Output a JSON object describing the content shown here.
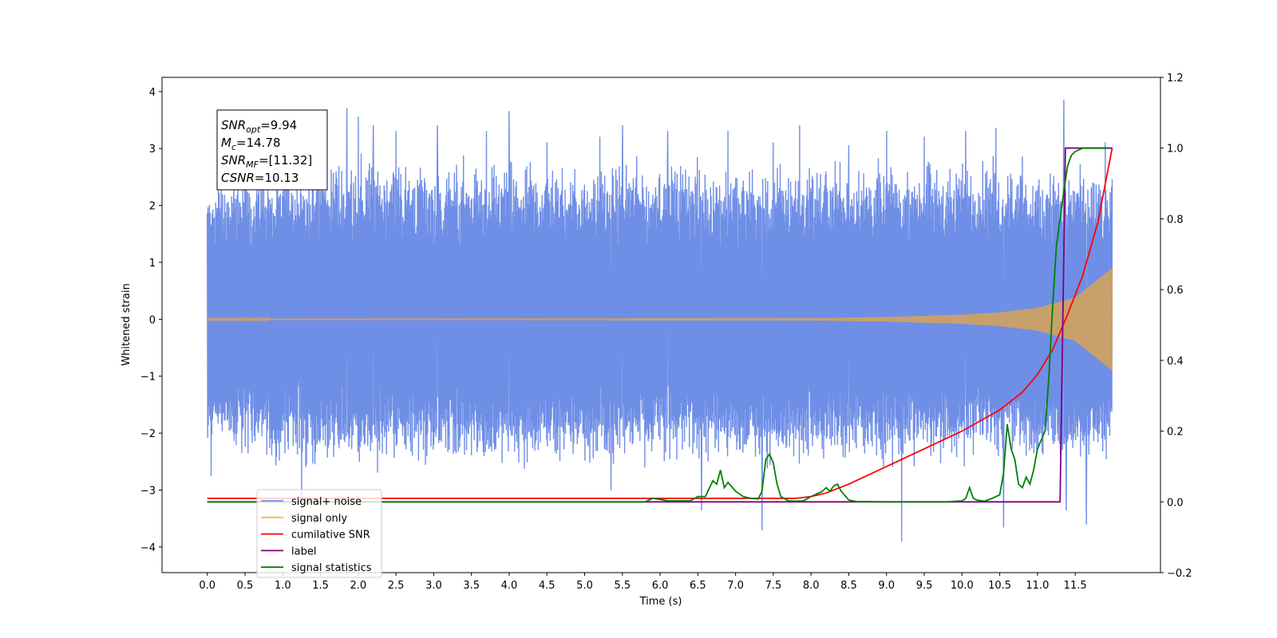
{
  "chart_data": {
    "type": "line",
    "xlabel": "Time (s)",
    "ylabel": "Whitened strain",
    "xlim": [
      -0.6,
      12.63
    ],
    "ylim": [
      -4.45,
      4.25
    ],
    "y2lim": [
      -0.2,
      1.2
    ],
    "x_ticks": [
      0.0,
      0.5,
      1.0,
      1.5,
      2.0,
      2.5,
      3.0,
      3.5,
      4.0,
      4.5,
      5.0,
      5.5,
      6.0,
      6.5,
      7.0,
      7.5,
      8.0,
      8.5,
      9.0,
      9.5,
      10.0,
      10.5,
      11.0,
      11.5
    ],
    "x_tick_labels": [
      "0.0",
      "0.5",
      "1.0",
      "1.5",
      "2.0",
      "2.5",
      "3.0",
      "3.5",
      "4.0",
      "4.5",
      "5.0",
      "5.5",
      "6.0",
      "6.5",
      "7.0",
      "7.5",
      "8.0",
      "8.5",
      "9.0",
      "9.5",
      "10.0",
      "10.5",
      "11.0",
      "11.5"
    ],
    "y_ticks": [
      -4,
      -3,
      -2,
      -1,
      0,
      1,
      2,
      3,
      4
    ],
    "y_tick_labels": [
      "−4",
      "−3",
      "−2",
      "−1",
      "0",
      "1",
      "2",
      "3",
      "4"
    ],
    "y2_ticks": [
      -0.2,
      0.0,
      0.2,
      0.4,
      0.6,
      0.8,
      1.0,
      1.2
    ],
    "y2_tick_labels": [
      "−0.2",
      "0.0",
      "0.2",
      "0.4",
      "0.6",
      "0.8",
      "1.0",
      "1.2"
    ],
    "annotation": {
      "lines": [
        {
          "base": "SNR",
          "sub": "opt",
          "value": "=9.94"
        },
        {
          "base": "M",
          "sub": "c",
          "value": "=14.78"
        },
        {
          "base": "SNR",
          "sub": "MF",
          "value": "=[11.32]"
        },
        {
          "base": "CSNR",
          "sub": "",
          "value": "=10.13"
        }
      ]
    },
    "legend": {
      "position": "lower-left",
      "entries": [
        {
          "label": "signal+ noise",
          "color": "#6f8ee6"
        },
        {
          "label": "signal only",
          "color": "#ffb347"
        },
        {
          "label": "cumilative SNR",
          "color": "#ff0000"
        },
        {
          "label": "label",
          "color": "#800080"
        },
        {
          "label": "signal statistics",
          "color": "#008000"
        }
      ]
    },
    "series": [
      {
        "name": "signal+ noise",
        "axis": "left",
        "color": "#6f8ee6",
        "t_start": 0.0,
        "t_end": 11.99,
        "envelope": {
          "t": [
            0.0,
            1.0,
            2.0,
            3.0,
            4.0,
            5.0,
            6.0,
            7.0,
            8.0,
            9.0,
            10.0,
            10.5,
            11.0,
            11.5,
            11.99
          ],
          "upper": [
            2.2,
            2.5,
            2.6,
            2.5,
            2.5,
            2.5,
            2.5,
            2.5,
            2.5,
            2.5,
            2.5,
            2.5,
            2.5,
            2.5,
            2.3
          ],
          "lower": [
            -2.0,
            -2.3,
            -2.4,
            -2.3,
            -2.3,
            -2.3,
            -2.3,
            -2.3,
            -2.3,
            -2.3,
            -2.3,
            -2.3,
            -2.3,
            -2.3,
            -2.1
          ]
        },
        "spikes": [
          {
            "t": 0.05,
            "y": -2.75
          },
          {
            "t": 0.35,
            "y": 3.3
          },
          {
            "t": 1.25,
            "y": -3.7
          },
          {
            "t": 1.45,
            "y": 3.5
          },
          {
            "t": 1.85,
            "y": 3.7
          },
          {
            "t": 2.0,
            "y": 3.55
          },
          {
            "t": 2.2,
            "y": 3.4
          },
          {
            "t": 2.5,
            "y": 3.3
          },
          {
            "t": 3.05,
            "y": 3.4
          },
          {
            "t": 3.7,
            "y": 3.3
          },
          {
            "t": 4.0,
            "y": 3.65
          },
          {
            "t": 4.5,
            "y": 3.1
          },
          {
            "t": 5.2,
            "y": 3.2
          },
          {
            "t": 5.35,
            "y": -3.0
          },
          {
            "t": 5.5,
            "y": 3.4
          },
          {
            "t": 6.1,
            "y": 3.3
          },
          {
            "t": 6.55,
            "y": -3.35
          },
          {
            "t": 6.9,
            "y": 3.3
          },
          {
            "t": 7.35,
            "y": -3.7
          },
          {
            "t": 7.5,
            "y": 3.1
          },
          {
            "t": 7.85,
            "y": 3.4
          },
          {
            "t": 8.5,
            "y": 3.05
          },
          {
            "t": 9.0,
            "y": 3.3
          },
          {
            "t": 9.2,
            "y": -3.9
          },
          {
            "t": 9.5,
            "y": 3.2
          },
          {
            "t": 10.05,
            "y": 3.3
          },
          {
            "t": 10.45,
            "y": 3.35
          },
          {
            "t": 10.55,
            "y": -3.65
          },
          {
            "t": 11.35,
            "y": 3.85
          },
          {
            "t": 11.38,
            "y": -3.35
          },
          {
            "t": 11.65,
            "y": -3.6
          },
          {
            "t": 11.9,
            "y": 3.1
          }
        ]
      },
      {
        "name": "signal only",
        "axis": "left",
        "color": "#c8a06c",
        "t_start": 0.0,
        "t_end": 11.99,
        "amplitude": {
          "t": [
            0.0,
            8.0,
            9.0,
            10.0,
            10.5,
            11.0,
            11.5,
            11.99
          ],
          "a": [
            0.01,
            0.02,
            0.04,
            0.08,
            0.12,
            0.2,
            0.38,
            0.9
          ]
        }
      },
      {
        "name": "cumilative SNR",
        "axis": "right",
        "color": "#ff0000",
        "x": [
          0.0,
          7.8,
          8.0,
          8.2,
          8.5,
          9.0,
          9.5,
          10.0,
          10.5,
          10.8,
          11.0,
          11.2,
          11.4,
          11.6,
          11.8,
          11.99
        ],
        "y": [
          0.01,
          0.01,
          0.015,
          0.025,
          0.05,
          0.1,
          0.15,
          0.2,
          0.26,
          0.31,
          0.36,
          0.43,
          0.53,
          0.64,
          0.79,
          1.0
        ]
      },
      {
        "name": "label",
        "axis": "right",
        "color": "#800080",
        "x": [
          0.0,
          11.3,
          11.37,
          11.99
        ],
        "y": [
          0.0,
          0.0,
          1.0,
          1.0
        ]
      },
      {
        "name": "signal statistics",
        "axis": "right",
        "color": "#008000",
        "x": [
          0.0,
          5.8,
          5.9,
          6.0,
          6.1,
          6.2,
          6.3,
          6.4,
          6.5,
          6.6,
          6.7,
          6.75,
          6.8,
          6.85,
          6.9,
          7.0,
          7.1,
          7.2,
          7.3,
          7.35,
          7.4,
          7.45,
          7.5,
          7.55,
          7.6,
          7.7,
          7.8,
          7.9,
          8.0,
          8.1,
          8.15,
          8.2,
          8.25,
          8.3,
          8.35,
          8.4,
          8.5,
          8.6,
          9.0,
          9.5,
          9.8,
          10.0,
          10.05,
          10.1,
          10.15,
          10.2,
          10.3,
          10.4,
          10.5,
          10.55,
          10.6,
          10.65,
          10.7,
          10.75,
          10.8,
          10.85,
          10.9,
          10.95,
          11.0,
          11.1,
          11.15,
          11.2,
          11.25,
          11.3,
          11.35,
          11.4,
          11.45,
          11.5,
          11.6,
          11.7,
          11.8,
          11.94
        ],
        "y": [
          0.0,
          0.0,
          0.01,
          0.007,
          0.003,
          0.003,
          0.003,
          0.003,
          0.015,
          0.015,
          0.06,
          0.05,
          0.09,
          0.04,
          0.055,
          0.03,
          0.015,
          0.01,
          0.008,
          0.03,
          0.12,
          0.135,
          0.11,
          0.05,
          0.015,
          0.003,
          0.002,
          0.003,
          0.015,
          0.025,
          0.03,
          0.04,
          0.03,
          0.045,
          0.05,
          0.03,
          0.005,
          0.001,
          0.0,
          0.0,
          0.0,
          0.003,
          0.01,
          0.04,
          0.01,
          0.005,
          0.002,
          0.01,
          0.02,
          0.08,
          0.22,
          0.15,
          0.12,
          0.05,
          0.04,
          0.07,
          0.05,
          0.09,
          0.15,
          0.2,
          0.35,
          0.55,
          0.72,
          0.8,
          0.88,
          0.95,
          0.98,
          0.99,
          1.0,
          1.0,
          1.0,
          1.0
        ]
      }
    ]
  }
}
